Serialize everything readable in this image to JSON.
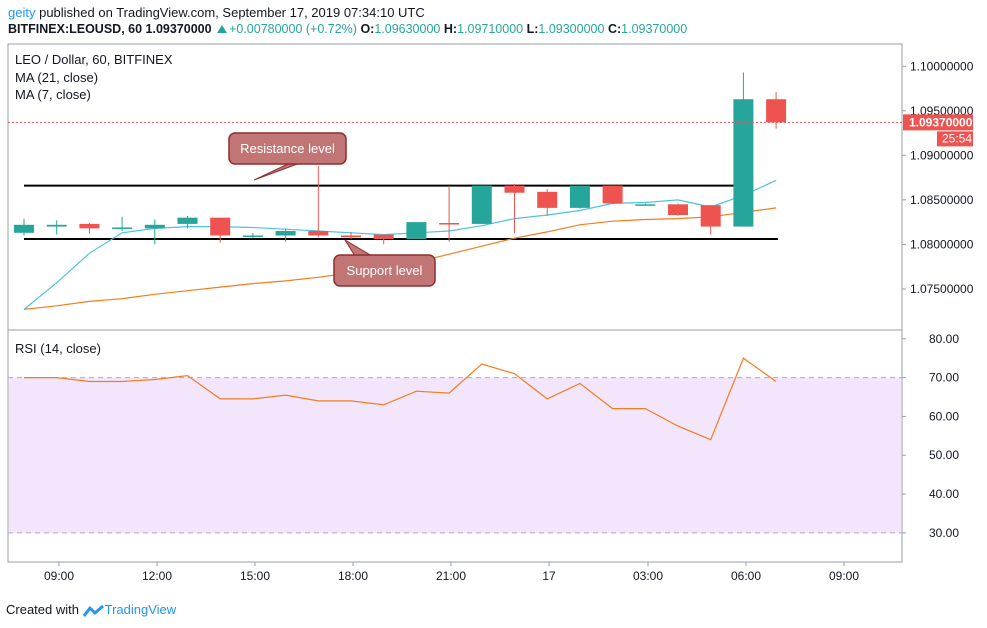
{
  "header": {
    "user": "geity",
    "publish_text": "published on TradingView.com, September 17, 2019 07:34:10 UTC",
    "symbol": "BITFINEX:LEOUSD, 60",
    "last": "1.09370000",
    "change": "+0.00780000 (+0.72%)",
    "o_label": "O:",
    "o": "1.09630000",
    "h_label": "H:",
    "h": "1.09710000",
    "l_label": "L:",
    "l": "1.09300000",
    "c_label": "C:",
    "c": "1.09370000"
  },
  "legend": {
    "title": "LEO / Dollar, 60, BITFINEX",
    "ma21": "MA (21, close)",
    "ma7": "MA (7, close)",
    "rsi": "RSI (14, close)"
  },
  "annotations": {
    "resistance": "Resistance level",
    "support": "Support level"
  },
  "price_axis": {
    "ticks": [
      "1.10000000",
      "1.09500000",
      "1.09000000",
      "1.08500000",
      "1.08000000",
      "1.07500000"
    ],
    "last_label": "1.09370000",
    "countdown": "25:54"
  },
  "rsi_axis": {
    "ticks": [
      "80.00",
      "70.00",
      "60.00",
      "50.00",
      "40.00",
      "30.00"
    ]
  },
  "time_axis": {
    "ticks": [
      "09:00",
      "12:00",
      "15:00",
      "18:00",
      "21:00",
      "17",
      "03:00",
      "06:00",
      "09:00"
    ]
  },
  "footer": {
    "created": "Created with",
    "brand": "TradingView"
  },
  "colors": {
    "up": "#26a69a",
    "down": "#ef5350",
    "ma21": "#f57c1f",
    "ma7": "#4dc3e0",
    "rsi": "#f57c1f",
    "rsi_band": "#f3e6fc",
    "last_price": "#ef5350"
  },
  "chart_data": {
    "type": "candlestick",
    "price_range": [
      1.0705,
      1.1025
    ],
    "rsi_range": [
      22.5,
      82
    ],
    "resistance_level": 1.0866,
    "support_level": 1.0806,
    "candles": [
      {
        "o": 1.0813,
        "h": 1.0829,
        "l": 1.081,
        "c": 1.0822
      },
      {
        "o": 1.082,
        "h": 1.0827,
        "l": 1.0811,
        "c": 1.0822
      },
      {
        "o": 1.0823,
        "h": 1.0824,
        "l": 1.0812,
        "c": 1.0818
      },
      {
        "o": 1.0818,
        "h": 1.0831,
        "l": 1.0815,
        "c": 1.0819
      },
      {
        "o": 1.0818,
        "h": 1.0828,
        "l": 1.08,
        "c": 1.0822
      },
      {
        "o": 1.0823,
        "h": 1.0832,
        "l": 1.0818,
        "c": 1.083
      },
      {
        "o": 1.083,
        "h": 1.083,
        "l": 1.0802,
        "c": 1.081
      },
      {
        "o": 1.081,
        "h": 1.0813,
        "l": 1.0807,
        "c": 1.081
      },
      {
        "o": 1.081,
        "h": 1.0818,
        "l": 1.0803,
        "c": 1.0815
      },
      {
        "o": 1.0815,
        "h": 1.0888,
        "l": 1.0808,
        "c": 1.081
      },
      {
        "o": 1.081,
        "h": 1.0814,
        "l": 1.0806,
        "c": 1.0808
      },
      {
        "o": 1.0811,
        "h": 1.0811,
        "l": 1.08,
        "c": 1.0806
      },
      {
        "o": 1.0806,
        "h": 1.0825,
        "l": 1.0806,
        "c": 1.0825
      },
      {
        "o": 1.0824,
        "h": 1.0866,
        "l": 1.0803,
        "c": 1.0823
      },
      {
        "o": 1.0823,
        "h": 1.0866,
        "l": 1.0823,
        "c": 1.0866
      },
      {
        "o": 1.0866,
        "h": 1.0868,
        "l": 1.0813,
        "c": 1.0858
      },
      {
        "o": 1.0859,
        "h": 1.0862,
        "l": 1.0832,
        "c": 1.0841
      },
      {
        "o": 1.0841,
        "h": 1.0866,
        "l": 1.084,
        "c": 1.0866
      },
      {
        "o": 1.0866,
        "h": 1.0866,
        "l": 1.0845,
        "c": 1.0846
      },
      {
        "o": 1.0845,
        "h": 1.0846,
        "l": 1.0844,
        "c": 1.0845
      },
      {
        "o": 1.0845,
        "h": 1.0846,
        "l": 1.0832,
        "c": 1.0833
      },
      {
        "o": 1.0844,
        "h": 1.0844,
        "l": 1.0811,
        "c": 1.082
      },
      {
        "o": 1.082,
        "h": 1.0993,
        "l": 1.082,
        "c": 1.0963
      },
      {
        "o": 1.0963,
        "h": 1.0971,
        "l": 1.093,
        "c": 1.0937
      }
    ],
    "ma21": [
      1.0727,
      1.0731,
      1.0736,
      1.0739,
      1.0744,
      1.0748,
      1.0752,
      1.0756,
      1.0759,
      1.0763,
      1.0768,
      1.0773,
      1.078,
      1.0789,
      1.0798,
      1.0807,
      1.0814,
      1.0822,
      1.0826,
      1.0828,
      1.0829,
      1.0831,
      1.0836,
      1.0841
    ],
    "ma7": [
      1.0727,
      1.0757,
      1.079,
      1.0813,
      1.0818,
      1.082,
      1.082,
      1.0819,
      1.0817,
      1.0815,
      1.0813,
      1.0811,
      1.0813,
      1.0815,
      1.0821,
      1.0829,
      1.0833,
      1.0838,
      1.0846,
      1.0847,
      1.085,
      1.0842,
      1.0855,
      1.0872
    ],
    "rsi": [
      70,
      70,
      69,
      69,
      69.5,
      70.5,
      64.5,
      64.5,
      65.5,
      64,
      64,
      63,
      66.5,
      66,
      73.5,
      71,
      64.5,
      68.5,
      62,
      62,
      57.5,
      54,
      75,
      69
    ]
  }
}
